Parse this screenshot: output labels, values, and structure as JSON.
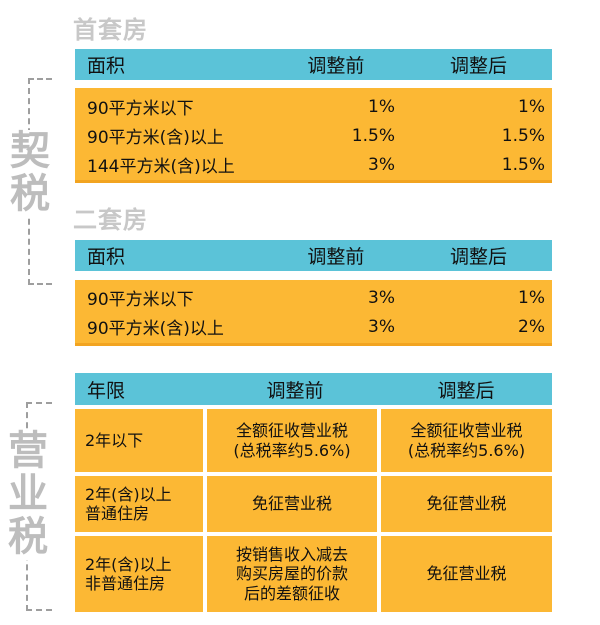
{
  "deed_tax": {
    "label": "契税",
    "first_home": {
      "title": "首套房",
      "headers": [
        "面积",
        "调整前",
        "调整后"
      ],
      "rows": [
        [
          "90平方米以下",
          "1%",
          "1%"
        ],
        [
          "90平方米(含)以上",
          "1.5%",
          "1.5%"
        ],
        [
          "144平方米(含)以上",
          "3%",
          "1.5%"
        ]
      ]
    },
    "second_home": {
      "title": "二套房",
      "headers": [
        "面积",
        "调整前",
        "调整后"
      ],
      "rows": [
        [
          "90平方米以下",
          "3%",
          "1%"
        ],
        [
          "90平方米(含)以上",
          "3%",
          "2%"
        ]
      ]
    }
  },
  "business_tax": {
    "label": "营业税",
    "headers": [
      "年限",
      "调整前",
      "调整后"
    ],
    "rows": [
      {
        "period": "2年以下",
        "before": "全额征收营业税\n(总税率约5.6%)",
        "after": "全额征收营业税\n(总税率约5.6%)"
      },
      {
        "period": "2年(含)以上\n普通住房",
        "before": "免征营业税",
        "after": "免征营业税"
      },
      {
        "period": "2年(含)以上\n非普通住房",
        "before": "按销售收入减去\n购买房屋的价款\n后的差额征收",
        "after": "免征营业税"
      }
    ]
  }
}
